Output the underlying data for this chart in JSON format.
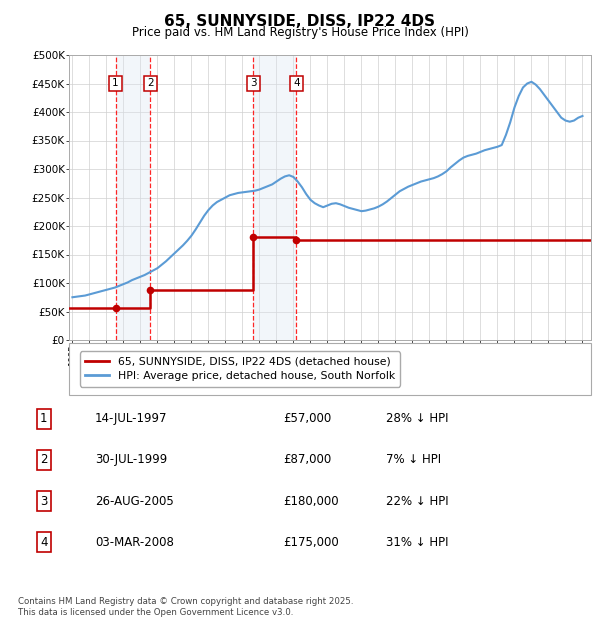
{
  "title": "65, SUNNYSIDE, DISS, IP22 4DS",
  "subtitle": "Price paid vs. HM Land Registry's House Price Index (HPI)",
  "legend_entries": [
    "65, SUNNYSIDE, DISS, IP22 4DS (detached house)",
    "HPI: Average price, detached house, South Norfolk"
  ],
  "footer": "Contains HM Land Registry data © Crown copyright and database right 2025.\nThis data is licensed under the Open Government Licence v3.0.",
  "transactions": [
    {
      "num": 1,
      "date": "14-JUL-1997",
      "price": "£57,000",
      "hpi_diff": "28% ↓ HPI",
      "year": 1997.54,
      "value": 57000
    },
    {
      "num": 2,
      "date": "30-JUL-1999",
      "price": "£87,000",
      "hpi_diff": "7% ↓ HPI",
      "year": 1999.58,
      "value": 87000
    },
    {
      "num": 3,
      "date": "26-AUG-2005",
      "price": "£180,000",
      "hpi_diff": "22% ↓ HPI",
      "year": 2005.65,
      "value": 180000
    },
    {
      "num": 4,
      "date": "03-MAR-2008",
      "price": "£175,000",
      "hpi_diff": "31% ↓ HPI",
      "year": 2008.17,
      "value": 175000
    }
  ],
  "hpi_line_color": "#5b9bd5",
  "price_line_color": "#c00000",
  "transaction_color": "#c00000",
  "vline_color": "#ff0000",
  "shade_color": "#dce6f1",
  "ylim": [
    0,
    500000
  ],
  "yticks": [
    0,
    50000,
    100000,
    150000,
    200000,
    250000,
    300000,
    350000,
    400000,
    450000,
    500000
  ],
  "ytick_labels": [
    "£0",
    "£50K",
    "£100K",
    "£150K",
    "£200K",
    "£250K",
    "£300K",
    "£350K",
    "£400K",
    "£450K",
    "£500K"
  ],
  "xlim": [
    1994.8,
    2025.5
  ],
  "hpi_data_x": [
    1995.0,
    1995.25,
    1995.5,
    1995.75,
    1996.0,
    1996.25,
    1996.5,
    1996.75,
    1997.0,
    1997.25,
    1997.5,
    1997.75,
    1998.0,
    1998.25,
    1998.5,
    1998.75,
    1999.0,
    1999.25,
    1999.5,
    1999.75,
    2000.0,
    2000.25,
    2000.5,
    2000.75,
    2001.0,
    2001.25,
    2001.5,
    2001.75,
    2002.0,
    2002.25,
    2002.5,
    2002.75,
    2003.0,
    2003.25,
    2003.5,
    2003.75,
    2004.0,
    2004.25,
    2004.5,
    2004.75,
    2005.0,
    2005.25,
    2005.5,
    2005.75,
    2006.0,
    2006.25,
    2006.5,
    2006.75,
    2007.0,
    2007.25,
    2007.5,
    2007.75,
    2008.0,
    2008.25,
    2008.5,
    2008.75,
    2009.0,
    2009.25,
    2009.5,
    2009.75,
    2010.0,
    2010.25,
    2010.5,
    2010.75,
    2011.0,
    2011.25,
    2011.5,
    2011.75,
    2012.0,
    2012.25,
    2012.5,
    2012.75,
    2013.0,
    2013.25,
    2013.5,
    2013.75,
    2014.0,
    2014.25,
    2014.5,
    2014.75,
    2015.0,
    2015.25,
    2015.5,
    2015.75,
    2016.0,
    2016.25,
    2016.5,
    2016.75,
    2017.0,
    2017.25,
    2017.5,
    2017.75,
    2018.0,
    2018.25,
    2018.5,
    2018.75,
    2019.0,
    2019.25,
    2019.5,
    2019.75,
    2020.0,
    2020.25,
    2020.5,
    2020.75,
    2021.0,
    2021.25,
    2021.5,
    2021.75,
    2022.0,
    2022.25,
    2022.5,
    2022.75,
    2023.0,
    2023.25,
    2023.5,
    2023.75,
    2024.0,
    2024.25,
    2024.5,
    2024.75,
    2025.0
  ],
  "hpi_data_y": [
    75000,
    76000,
    77000,
    78000,
    80000,
    82000,
    84000,
    86000,
    88000,
    90000,
    92000,
    95000,
    98000,
    101000,
    105000,
    108000,
    111000,
    114000,
    118000,
    122000,
    126000,
    132000,
    138000,
    145000,
    152000,
    159000,
    166000,
    174000,
    183000,
    194000,
    206000,
    218000,
    228000,
    236000,
    242000,
    246000,
    250000,
    254000,
    256000,
    258000,
    259000,
    260000,
    261000,
    262000,
    264000,
    267000,
    270000,
    273000,
    278000,
    283000,
    287000,
    289000,
    286000,
    278000,
    268000,
    256000,
    246000,
    240000,
    236000,
    233000,
    236000,
    239000,
    240000,
    238000,
    235000,
    232000,
    230000,
    228000,
    226000,
    227000,
    229000,
    231000,
    234000,
    238000,
    243000,
    249000,
    255000,
    261000,
    265000,
    269000,
    272000,
    275000,
    278000,
    280000,
    282000,
    284000,
    287000,
    291000,
    296000,
    303000,
    309000,
    315000,
    320000,
    323000,
    325000,
    327000,
    330000,
    333000,
    335000,
    337000,
    339000,
    342000,
    360000,
    382000,
    408000,
    428000,
    443000,
    450000,
    453000,
    448000,
    440000,
    430000,
    420000,
    410000,
    400000,
    390000,
    385000,
    383000,
    385000,
    390000,
    393000
  ],
  "background_color": "#ffffff",
  "grid_color": "#d0d0d0",
  "plot_bg": "#ffffff"
}
